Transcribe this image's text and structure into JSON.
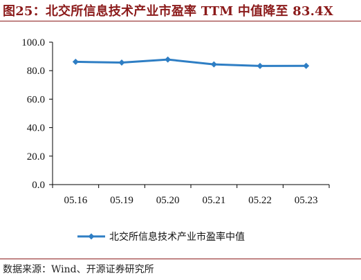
{
  "title": "图25：北交所信息技术产业市盈率 TTM 中值降至 83.4X",
  "source": "数据来源：Wind、开源证券研究所",
  "colors": {
    "accent": "#8B1A1A",
    "series": "#2E7EC4"
  },
  "chart_data": {
    "type": "line",
    "categories": [
      "05.16",
      "05.19",
      "05.20",
      "05.21",
      "05.22",
      "05.23"
    ],
    "series": [
      {
        "name": "北交所信息技术产业市盈率中值",
        "values": [
          86.2,
          85.7,
          87.8,
          84.4,
          83.3,
          83.4
        ]
      }
    ],
    "y_ticks": [
      "0.0",
      "20.0",
      "40.0",
      "60.0",
      "80.0",
      "100.0"
    ],
    "ylim": [
      0,
      100
    ],
    "grid": false,
    "legend": "bottom",
    "marker": "diamond"
  }
}
